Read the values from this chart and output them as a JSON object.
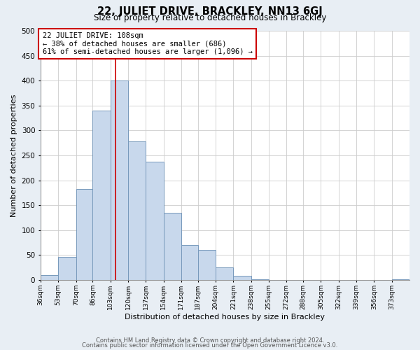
{
  "title": "22, JULIET DRIVE, BRACKLEY, NN13 6GJ",
  "subtitle": "Size of property relative to detached houses in Brackley",
  "xlabel": "Distribution of detached houses by size in Brackley",
  "ylabel": "Number of detached properties",
  "bin_labels": [
    "36sqm",
    "53sqm",
    "70sqm",
    "86sqm",
    "103sqm",
    "120sqm",
    "137sqm",
    "154sqm",
    "171sqm",
    "187sqm",
    "204sqm",
    "221sqm",
    "238sqm",
    "255sqm",
    "272sqm",
    "288sqm",
    "305sqm",
    "322sqm",
    "339sqm",
    "356sqm",
    "373sqm"
  ],
  "bin_edges": [
    36,
    53,
    70,
    86,
    103,
    120,
    137,
    154,
    171,
    187,
    204,
    221,
    238,
    255,
    272,
    288,
    305,
    322,
    339,
    356,
    373,
    390
  ],
  "bar_heights": [
    10,
    46,
    183,
    340,
    400,
    278,
    238,
    135,
    70,
    60,
    25,
    8,
    2,
    0,
    0,
    0,
    0,
    0,
    0,
    0,
    2
  ],
  "bar_color": "#c8d8ec",
  "bar_edge_color": "#7799bb",
  "ylim": [
    0,
    500
  ],
  "yticks": [
    0,
    50,
    100,
    150,
    200,
    250,
    300,
    350,
    400,
    450,
    500
  ],
  "vline_x": 108,
  "vline_color": "#cc0000",
  "annotation_title": "22 JULIET DRIVE: 108sqm",
  "annotation_line1": "← 38% of detached houses are smaller (686)",
  "annotation_line2": "61% of semi-detached houses are larger (1,096) →",
  "annotation_box_color": "#ffffff",
  "annotation_box_edgecolor": "#cc0000",
  "footer_line1": "Contains HM Land Registry data © Crown copyright and database right 2024.",
  "footer_line2": "Contains public sector information licensed under the Open Government Licence v3.0.",
  "background_color": "#e8eef4",
  "plot_background": "#ffffff",
  "grid_color": "#cccccc"
}
